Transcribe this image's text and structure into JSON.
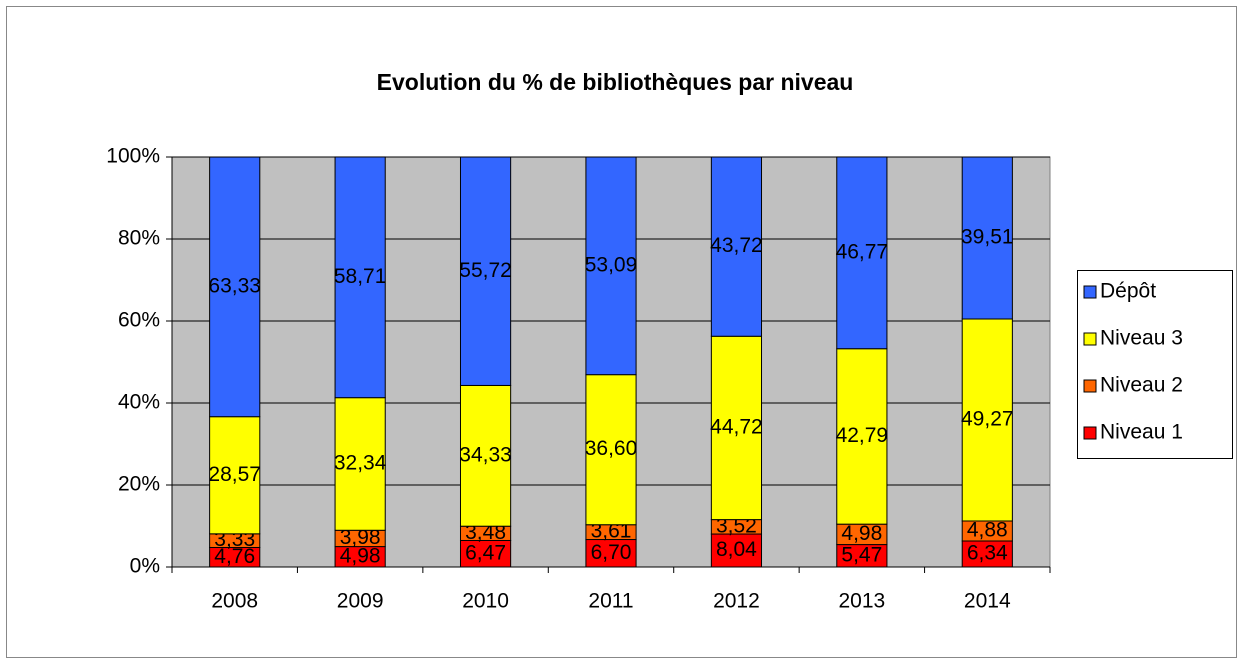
{
  "chart_data": {
    "type": "stacked_bar",
    "title": "Evolution du % de bibliothèques par niveau",
    "categories": [
      "2008",
      "2009",
      "2010",
      "2011",
      "2012",
      "2013",
      "2014"
    ],
    "series": [
      {
        "name": "Niveau 1",
        "color": "#ff0000",
        "values": [
          4.76,
          4.98,
          6.47,
          6.7,
          8.04,
          5.47,
          6.34
        ],
        "value_labels": [
          "4,76",
          "4,98",
          "6,47",
          "6,70",
          "8,04",
          "5,47",
          "6,34"
        ]
      },
      {
        "name": "Niveau 2",
        "color": "#ff6600",
        "values": [
          3.33,
          3.98,
          3.48,
          3.61,
          3.52,
          4.98,
          4.88
        ],
        "value_labels": [
          "3,33",
          "3,98",
          "3,48",
          "3,61",
          "3,52",
          "4,98",
          "4,88"
        ]
      },
      {
        "name": "Niveau 3",
        "color": "#ffff00",
        "values": [
          28.57,
          32.34,
          34.33,
          36.6,
          44.72,
          42.79,
          49.27
        ],
        "value_labels": [
          "28,57",
          "32,34",
          "34,33",
          "36,60",
          "44,72",
          "42,79",
          "49,27"
        ]
      },
      {
        "name": "Dépôt",
        "color": "#3366ff",
        "values": [
          63.33,
          58.71,
          55.72,
          53.09,
          43.72,
          46.77,
          39.51
        ],
        "value_labels": [
          "63,33",
          "58,71",
          "55,72",
          "53,09",
          "43,72",
          "46,77",
          "39,51"
        ]
      }
    ],
    "ylim": [
      0,
      100
    ],
    "yticks": [
      {
        "value": 0,
        "label": "0%"
      },
      {
        "value": 20,
        "label": "20%"
      },
      {
        "value": 40,
        "label": "40%"
      },
      {
        "value": 60,
        "label": "60%"
      },
      {
        "value": 80,
        "label": "80%"
      },
      {
        "value": 100,
        "label": "100%"
      }
    ],
    "grid": true,
    "legend": "right"
  }
}
